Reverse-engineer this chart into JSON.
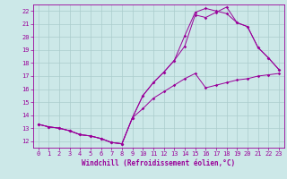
{
  "xlabel": "Windchill (Refroidissement éolien,°C)",
  "bg_color": "#cce8e8",
  "line_color": "#990099",
  "grid_color": "#aacccc",
  "xlim": [
    -0.5,
    23.5
  ],
  "ylim": [
    11.5,
    22.5
  ],
  "xticks": [
    0,
    1,
    2,
    3,
    4,
    5,
    6,
    7,
    8,
    9,
    10,
    11,
    12,
    13,
    14,
    15,
    16,
    17,
    18,
    19,
    20,
    21,
    22,
    23
  ],
  "yticks": [
    12,
    13,
    14,
    15,
    16,
    17,
    18,
    19,
    20,
    21,
    22
  ],
  "series1_x": [
    0,
    1,
    2,
    3,
    4,
    5,
    6,
    7,
    8,
    9,
    10,
    11,
    12,
    13,
    14,
    15,
    16,
    17,
    18,
    19,
    20,
    21,
    22,
    23
  ],
  "series1_y": [
    13.3,
    13.1,
    13.0,
    12.8,
    12.5,
    12.4,
    12.2,
    11.9,
    11.8,
    13.8,
    14.5,
    15.3,
    15.8,
    16.3,
    16.8,
    17.2,
    16.1,
    16.3,
    16.5,
    16.7,
    16.8,
    17.0,
    17.1,
    17.2
  ],
  "series2_x": [
    0,
    1,
    2,
    3,
    4,
    5,
    6,
    7,
    8,
    9,
    10,
    11,
    12,
    13,
    14,
    15,
    16,
    17,
    18,
    19,
    20,
    21,
    22,
    23
  ],
  "series2_y": [
    13.3,
    13.1,
    13.0,
    12.8,
    12.5,
    12.4,
    12.2,
    11.9,
    11.8,
    13.8,
    15.5,
    16.5,
    17.3,
    18.2,
    19.3,
    21.7,
    21.5,
    21.9,
    22.3,
    21.1,
    20.8,
    19.2,
    18.4,
    17.5
  ],
  "series3_x": [
    0,
    1,
    2,
    3,
    4,
    5,
    6,
    7,
    8,
    9,
    10,
    11,
    12,
    13,
    14,
    15,
    16,
    17,
    18,
    19,
    20,
    21,
    22,
    23
  ],
  "series3_y": [
    13.3,
    13.1,
    13.0,
    12.8,
    12.5,
    12.4,
    12.2,
    11.9,
    11.8,
    13.8,
    15.5,
    16.5,
    17.3,
    18.2,
    20.1,
    21.9,
    22.2,
    22.0,
    21.8,
    21.1,
    20.8,
    19.2,
    18.4,
    17.5
  ]
}
